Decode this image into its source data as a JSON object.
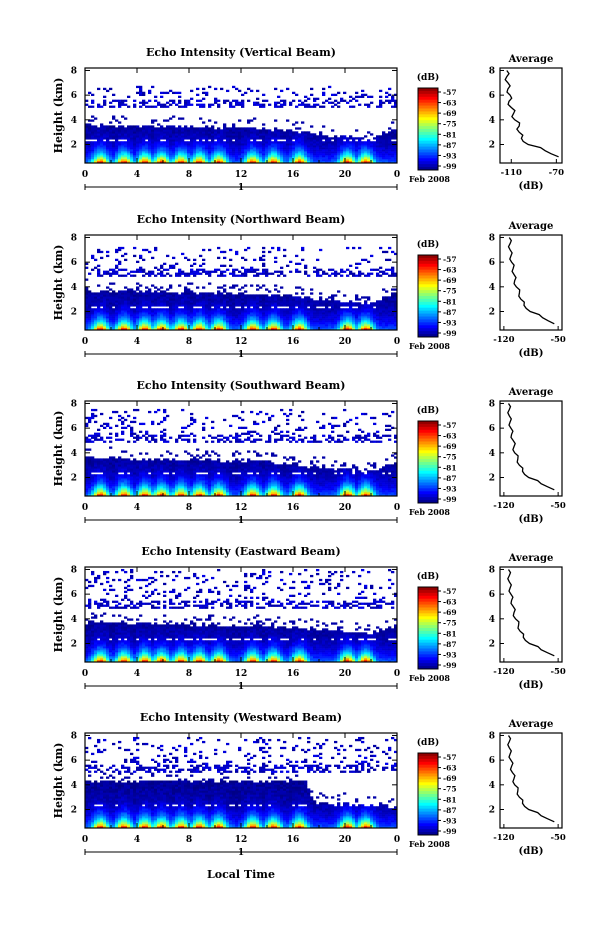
{
  "figure": {
    "xlabel": "Local Time",
    "date_label": "Feb 2008",
    "day_label": "1",
    "ylabel": "Height (km)",
    "cbar_unit": "(dB)",
    "avg_title": "Average",
    "avg_xlabel": "(dB)"
  },
  "chart_data": [
    {
      "type": "heatmap",
      "title": "Echo Intensity (Vertical Beam)",
      "xlabel": "Local Time",
      "ylabel": "Height (km)",
      "x_ticks": [
        "0",
        "4",
        "8",
        "12",
        "16",
        "20",
        "0"
      ],
      "xlim": [
        0,
        24
      ],
      "y_ticks": [
        "2",
        "4",
        "6",
        "8"
      ],
      "ylim": [
        0.5,
        8.2
      ],
      "colorbar": {
        "label": "(dB)",
        "ticks": [
          "-57",
          "-63",
          "-69",
          "-75",
          "-81",
          "-87",
          "-93",
          "-99"
        ],
        "range": [
          -99,
          -57
        ]
      },
      "echo_tops_km": [
        {
          "hour": 0,
          "top": 3.6
        },
        {
          "hour": 14,
          "top": 3.3
        },
        {
          "hour": 22,
          "top": 2.4
        },
        {
          "hour": 24,
          "top": 3.3
        }
      ],
      "scatter_band_km": [
        5.0,
        6.7
      ],
      "average_profile": {
        "title": "Average",
        "xlabel": "(dB)",
        "x_ticks": [
          "-110",
          "-70"
        ],
        "xlim": [
          -120,
          -65
        ],
        "y_ticks": [
          "2",
          "4",
          "6",
          "8"
        ],
        "ylim": [
          0.5,
          8.2
        ],
        "height_km": [
          1.0,
          1.5,
          2.0,
          2.5,
          3.0,
          3.5,
          4.0,
          4.5,
          5.0,
          5.5,
          6.0,
          6.5,
          7.0,
          7.5,
          8.0
        ],
        "value_db": [
          -68,
          -80,
          -95,
          -101,
          -103,
          -103,
          -107,
          -108,
          -110,
          -112,
          -111,
          -113,
          -113,
          -114,
          -114
        ]
      }
    },
    {
      "type": "heatmap",
      "title": "Echo Intensity (Northward Beam)",
      "xlabel": "Local Time",
      "ylabel": "Height (km)",
      "x_ticks": [
        "0",
        "4",
        "8",
        "12",
        "16",
        "20",
        "0"
      ],
      "xlim": [
        0,
        24
      ],
      "y_ticks": [
        "2",
        "4",
        "6",
        "8"
      ],
      "ylim": [
        0.5,
        8.2
      ],
      "colorbar": {
        "label": "(dB)",
        "ticks": [
          "-57",
          "-63",
          "-69",
          "-75",
          "-81",
          "-87",
          "-93",
          "-99"
        ],
        "range": [
          -99,
          -57
        ]
      },
      "echo_tops_km": [
        {
          "hour": 0,
          "top": 3.7
        },
        {
          "hour": 14,
          "top": 3.4
        },
        {
          "hour": 22,
          "top": 2.6
        },
        {
          "hour": 24,
          "top": 3.6
        }
      ],
      "scatter_band_km": [
        4.8,
        7.2
      ],
      "average_profile": {
        "title": "Average",
        "xlabel": "(dB)",
        "x_ticks": [
          "-120",
          "-50"
        ],
        "xlim": [
          -125,
          -45
        ],
        "y_ticks": [
          "2",
          "4",
          "6",
          "8"
        ],
        "ylim": [
          0.5,
          8.2
        ],
        "height_km": [
          1.0,
          1.5,
          2.0,
          2.5,
          3.0,
          3.5,
          4.0,
          4.5,
          5.0,
          5.5,
          6.0,
          6.5,
          7.0,
          7.5,
          8.0
        ],
        "value_db": [
          -55,
          -70,
          -86,
          -94,
          -98,
          -100,
          -104,
          -106,
          -107,
          -108,
          -110,
          -111,
          -112,
          -112,
          -113
        ]
      }
    },
    {
      "type": "heatmap",
      "title": "Echo Intensity (Southward Beam)",
      "xlabel": "Local Time",
      "ylabel": "Height (km)",
      "x_ticks": [
        "0",
        "4",
        "8",
        "12",
        "16",
        "20",
        "0"
      ],
      "xlim": [
        0,
        24
      ],
      "y_ticks": [
        "2",
        "4",
        "6",
        "8"
      ],
      "ylim": [
        0.5,
        8.2
      ],
      "colorbar": {
        "label": "(dB)",
        "ticks": [
          "-57",
          "-63",
          "-69",
          "-75",
          "-81",
          "-87",
          "-93",
          "-99"
        ],
        "range": [
          -99,
          -57
        ]
      },
      "echo_tops_km": [
        {
          "hour": 0,
          "top": 3.6
        },
        {
          "hour": 14,
          "top": 3.3
        },
        {
          "hour": 22,
          "top": 2.4
        },
        {
          "hour": 24,
          "top": 3.2
        }
      ],
      "scatter_band_km": [
        4.8,
        7.5
      ],
      "average_profile": {
        "title": "Average",
        "xlabel": "(dB)",
        "x_ticks": [
          "-120",
          "-50"
        ],
        "xlim": [
          -125,
          -45
        ],
        "y_ticks": [
          "2",
          "4",
          "6",
          "8"
        ],
        "ylim": [
          0.5,
          8.2
        ],
        "height_km": [
          1.0,
          1.5,
          2.0,
          2.5,
          3.0,
          3.5,
          4.0,
          4.5,
          5.0,
          5.5,
          6.0,
          6.5,
          7.0,
          7.5,
          8.0
        ],
        "value_db": [
          -55,
          -72,
          -88,
          -96,
          -100,
          -102,
          -106,
          -107,
          -108,
          -110,
          -111,
          -112,
          -113,
          -113,
          -114
        ]
      }
    },
    {
      "type": "heatmap",
      "title": "Echo Intensity (Eastward Beam)",
      "xlabel": "Local Time",
      "ylabel": "Height (km)",
      "x_ticks": [
        "0",
        "4",
        "8",
        "12",
        "16",
        "20",
        "0"
      ],
      "xlim": [
        0,
        24
      ],
      "y_ticks": [
        "2",
        "4",
        "6",
        "8"
      ],
      "ylim": [
        0.5,
        8.2
      ],
      "colorbar": {
        "label": "(dB)",
        "ticks": [
          "-57",
          "-63",
          "-69",
          "-75",
          "-81",
          "-87",
          "-93",
          "-99"
        ],
        "range": [
          -99,
          -57
        ]
      },
      "echo_tops_km": [
        {
          "hour": 0,
          "top": 3.7
        },
        {
          "hour": 14,
          "top": 3.4
        },
        {
          "hour": 22,
          "top": 2.8
        },
        {
          "hour": 24,
          "top": 3.5
        }
      ],
      "scatter_band_km": [
        4.8,
        8.0
      ],
      "average_profile": {
        "title": "Average",
        "xlabel": "(dB)",
        "x_ticks": [
          "-120",
          "-50"
        ],
        "xlim": [
          -125,
          -45
        ],
        "y_ticks": [
          "2",
          "4",
          "6",
          "8"
        ],
        "ylim": [
          0.5,
          8.2
        ],
        "height_km": [
          1.0,
          1.5,
          2.0,
          2.5,
          3.0,
          3.5,
          4.0,
          4.5,
          5.0,
          5.5,
          6.0,
          6.5,
          7.0,
          7.5,
          8.0
        ],
        "value_db": [
          -55,
          -72,
          -87,
          -95,
          -99,
          -101,
          -105,
          -107,
          -108,
          -110,
          -111,
          -112,
          -113,
          -113,
          -114
        ]
      }
    },
    {
      "type": "heatmap",
      "title": "Echo Intensity (Westward Beam)",
      "xlabel": "Local Time",
      "ylabel": "Height (km)",
      "x_ticks": [
        "0",
        "4",
        "8",
        "12",
        "16",
        "20",
        "0"
      ],
      "xlim": [
        0,
        24
      ],
      "y_ticks": [
        "2",
        "4",
        "6",
        "8"
      ],
      "ylim": [
        0.5,
        8.2
      ],
      "colorbar": {
        "label": "(dB)",
        "ticks": [
          "-57",
          "-63",
          "-69",
          "-75",
          "-81",
          "-87",
          "-93",
          "-99"
        ],
        "range": [
          -99,
          -57
        ]
      },
      "echo_tops_km": [
        {
          "hour": 0,
          "top": 4.3
        },
        {
          "hour": 17,
          "top": 4.3
        },
        {
          "hour": 17.5,
          "top": 2.6
        },
        {
          "hour": 24,
          "top": 2.2
        }
      ],
      "scatter_band_km": [
        5.0,
        7.8
      ],
      "average_profile": {
        "title": "Average",
        "xlabel": "(dB)",
        "x_ticks": [
          "-120",
          "-50"
        ],
        "xlim": [
          -125,
          -45
        ],
        "y_ticks": [
          "2",
          "4",
          "6",
          "8"
        ],
        "ylim": [
          0.5,
          8.2
        ],
        "height_km": [
          1.0,
          1.5,
          2.0,
          2.5,
          3.0,
          3.5,
          4.0,
          4.5,
          5.0,
          5.5,
          6.0,
          6.5,
          7.0,
          7.5,
          8.0
        ],
        "value_db": [
          -55,
          -72,
          -88,
          -96,
          -100,
          -102,
          -106,
          -107,
          -109,
          -110,
          -111,
          -112,
          -113,
          -113,
          -114
        ]
      }
    }
  ]
}
